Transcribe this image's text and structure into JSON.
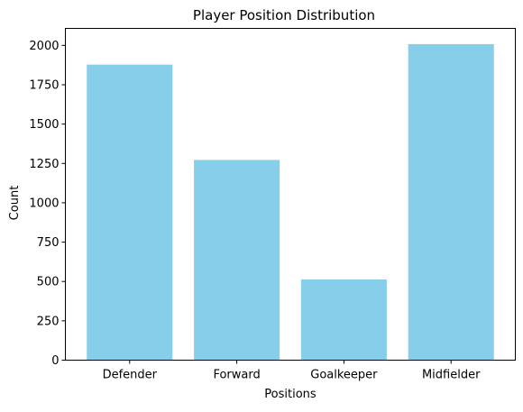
{
  "chart_data": {
    "type": "bar",
    "title": "Player Position Distribution",
    "xlabel": "Positions",
    "ylabel": "Count",
    "categories": [
      "Defender",
      "Forward",
      "Goalkeeper",
      "Midfielder"
    ],
    "values": [
      1878,
      1272,
      513,
      2008
    ],
    "ylim": [
      0,
      2108
    ],
    "yticks": [
      0,
      250,
      500,
      750,
      1000,
      1250,
      1500,
      1750,
      2000
    ],
    "bar_color": "#87CEEB",
    "grid": false,
    "legend": "none"
  }
}
